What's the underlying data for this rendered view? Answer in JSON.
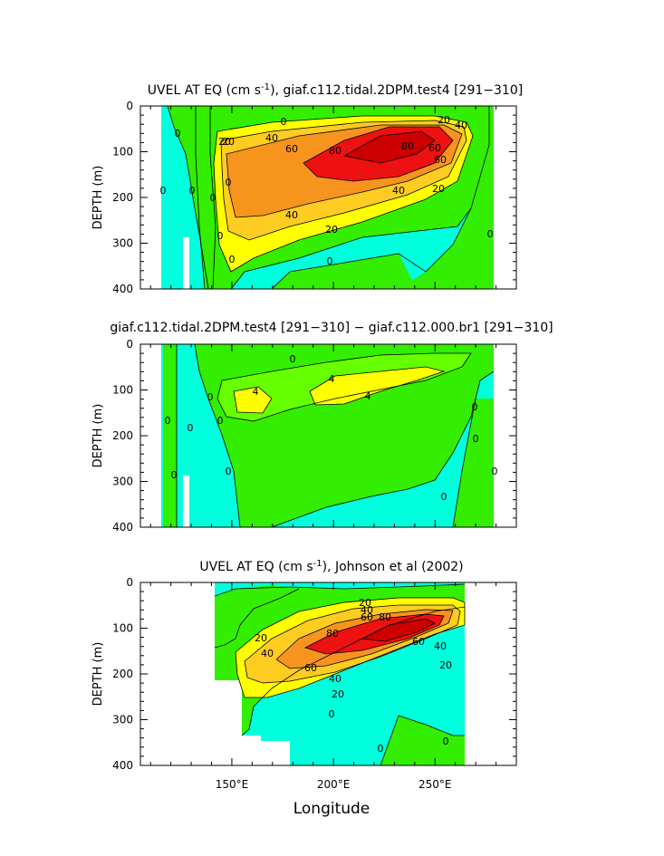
{
  "chart_data": [
    {
      "type": "heatmap",
      "title": "UVEL AT EQ (cm s",
      "title_sup": "-1",
      "title_rest": "), giaf.c112.tidal.2DPM.test4 [291−310]",
      "ylabel": "DEPTH (m)",
      "ylim": [
        400,
        0
      ],
      "xlim": [
        105,
        290
      ],
      "yticks": [
        "0",
        "100",
        "200",
        "300",
        "400"
      ],
      "contour_labels": [
        "0",
        "20",
        "40",
        "20",
        "40",
        "60",
        "80",
        "60",
        "80",
        "60",
        "40",
        "20",
        "40",
        "20",
        "0",
        "0",
        "0",
        "0",
        "0",
        "20",
        "0",
        "0",
        "0",
        "0"
      ],
      "fill_levels": [
        -20,
        0,
        20,
        40,
        60,
        80,
        100
      ]
    },
    {
      "type": "heatmap",
      "title": "giaf.c112.tidal.2DPM.test4 [291−310] − giaf.c112.000.br1 [291−310]",
      "ylabel": "DEPTH (m)",
      "ylim": [
        400,
        0
      ],
      "xlim": [
        105,
        290
      ],
      "yticks": [
        "0",
        "100",
        "200",
        "300",
        "400"
      ],
      "contour_labels": [
        "4",
        "4",
        "4",
        "0",
        "0",
        "0",
        "0",
        "0",
        "0",
        "0",
        "0",
        "0",
        "0",
        "0"
      ],
      "fill_levels": [
        -4,
        0,
        4,
        8
      ]
    },
    {
      "type": "heatmap",
      "title": "UVEL AT EQ (cm s",
      "title_sup": "-1",
      "title_rest": "), Johnson et al (2002)",
      "ylabel": "DEPTH (m)",
      "xlabel": "Longitude",
      "ylim": [
        400,
        0
      ],
      "xlim": [
        105,
        290
      ],
      "yticks": [
        "0",
        "100",
        "200",
        "300",
        "400"
      ],
      "xticks": [
        "150°E",
        "200°E",
        "250°E"
      ],
      "xtick_values": [
        150,
        200,
        250
      ],
      "contour_labels": [
        "20",
        "40",
        "60",
        "80",
        "20",
        "40",
        "60",
        "80",
        "60",
        "40",
        "20",
        "40",
        "20",
        "0",
        "0",
        "0"
      ],
      "fill_levels": [
        -20,
        0,
        20,
        40,
        60,
        80,
        100
      ]
    }
  ],
  "colors": {
    "cyan": "#00ffdd",
    "green": "#33ee00",
    "lightgreen": "#66ff00",
    "yellow": "#ffff00",
    "lightorange": "#ffcc22",
    "orange": "#f7941d",
    "red": "#ee1111",
    "darkred": "#dd0000"
  }
}
